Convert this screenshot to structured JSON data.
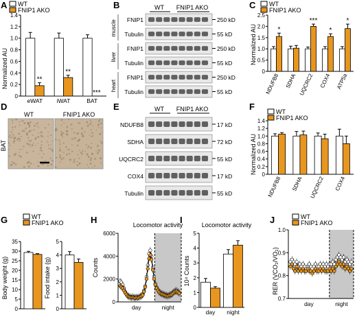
{
  "panel_labels": {
    "A": "A",
    "B": "B",
    "C": "C",
    "D": "D",
    "E": "E",
    "F": "F",
    "G": "G",
    "H": "H",
    "I": "I",
    "J": "J"
  },
  "legend": {
    "wt": "WT",
    "ko": "FNIP1 AKO"
  },
  "colors": {
    "wt": "#ffffff",
    "ko": "#e8961f",
    "outline": "#000000",
    "night": "#c8c8c8"
  },
  "panel_a": {
    "ylabel": "Normalized AU"
  },
  "panel_b": {
    "wt_label": "WT",
    "ko_label": "FNIP1 AKO",
    "tissues": [
      "muscle",
      "liver",
      "heart"
    ],
    "rows": [
      {
        "protein": "FNIP1",
        "kd": "250 kD"
      },
      {
        "protein": "Tubulin",
        "kd": "55 kD"
      },
      {
        "protein": "FNIP1",
        "kd": "250 kD"
      },
      {
        "protein": "Tubulin",
        "kd": "55 kD"
      },
      {
        "protein": "FNIP1",
        "kd": "250 kD"
      },
      {
        "protein": "Tubulin",
        "kd": "55 kD"
      }
    ]
  },
  "panel_c": {
    "ylabel": "Normalized AU"
  },
  "panel_d": {
    "wt_label": "WT",
    "ko_label": "FNIP1 AKO",
    "side_label": "BAT"
  },
  "panel_e": {
    "wt_label": "WT",
    "ko_label": "FNIP1 AKO",
    "rows": [
      {
        "protein": "NDUFB8",
        "kd": "17 kD"
      },
      {
        "protein": "SDHA",
        "kd": "72 kD"
      },
      {
        "protein": "UQCRC2",
        "kd": "55 kD"
      },
      {
        "protein": "COX4",
        "kd": "17 kD"
      },
      {
        "protein": "Tubulin",
        "kd": "55 kD"
      }
    ]
  },
  "panel_f": {
    "ylabel": "Normalized AU"
  },
  "panel_g": {
    "ylabel1": "Body weight (g)",
    "ylabel2": "Food intake (g)"
  },
  "panel_h": {
    "title": "Locomotor activity",
    "ylabel": "Counts",
    "day": "day",
    "night": "night"
  },
  "panel_i": {
    "title": "Locomotor activity",
    "ylabel": "10⁴ Counts"
  },
  "panel_j": {
    "ylabel": "RER (VCO₂/VO₂)",
    "day": "day",
    "night": "night"
  },
  "chart_data": [
    {
      "panel": "A",
      "type": "bar",
      "categories": [
        "eWAT",
        "iWAT",
        "BAT"
      ],
      "series": [
        {
          "name": "WT",
          "values": [
            1.0,
            1.0,
            1.0
          ],
          "err": [
            0.1,
            0.09,
            0.06
          ]
        },
        {
          "name": "FNIP1 AKO",
          "values": [
            0.18,
            0.32,
            0.0
          ],
          "err": [
            0.05,
            0.04,
            0.0
          ]
        }
      ],
      "ylim": [
        0,
        1.4
      ],
      "yticks": [
        "0",
        "0.2",
        "0.4",
        "0.6",
        "0.8",
        "1.0",
        "1.2",
        "1.4"
      ],
      "sig": [
        "**",
        "**",
        "***"
      ]
    },
    {
      "panel": "C",
      "type": "bar",
      "categories": [
        "NDUFB8",
        "SDHA",
        "UQCRC2",
        "COX4",
        "ATP5a"
      ],
      "series": [
        {
          "name": "WT",
          "values": [
            1.0,
            1.0,
            1.0,
            1.0,
            1.0
          ],
          "err": [
            0.1,
            0.12,
            0.08,
            0.1,
            0.1
          ]
        },
        {
          "name": "FNIP1 AKO",
          "values": [
            1.55,
            1.03,
            2.0,
            1.55,
            1.9
          ],
          "err": [
            0.15,
            0.12,
            0.1,
            0.12,
            0.2
          ]
        }
      ],
      "ylim": [
        0,
        2.5
      ],
      "yticks": [
        "0",
        "0.5",
        "1.0",
        "1.5",
        "2.0",
        "2.5"
      ],
      "sig": [
        "*",
        "",
        "***",
        "*",
        "*"
      ]
    },
    {
      "panel": "F",
      "type": "bar",
      "categories": [
        "NDUFB8",
        "SDHA",
        "UQCRC2",
        "COX4"
      ],
      "series": [
        {
          "name": "WT",
          "values": [
            1.0,
            1.0,
            1.0,
            1.0
          ],
          "err": [
            0.06,
            0.12,
            0.08,
            0.18
          ]
        },
        {
          "name": "FNIP1 AKO",
          "values": [
            1.05,
            1.03,
            0.93,
            0.8
          ],
          "err": [
            0.04,
            0.1,
            0.12,
            0.2
          ]
        }
      ],
      "ylim": [
        0,
        1.4
      ],
      "yticks": [
        "0",
        "0.2",
        "0.4",
        "0.6",
        "0.8",
        "1.0",
        "1.2",
        "1.4"
      ],
      "sig": [
        "",
        "",
        "",
        ""
      ]
    },
    {
      "panel": "G1",
      "type": "bar",
      "categories": [
        ""
      ],
      "series": [
        {
          "name": "WT",
          "values": [
            29.3
          ],
          "err": [
            0.6
          ]
        },
        {
          "name": "FNIP1 AKO",
          "values": [
            28.3
          ],
          "err": [
            0.4
          ]
        }
      ],
      "ylim": [
        0,
        35
      ],
      "yticks": [
        "0",
        "5",
        "10",
        "15",
        "20",
        "25",
        "30",
        "35"
      ]
    },
    {
      "panel": "G2",
      "type": "bar",
      "categories": [
        ""
      ],
      "series": [
        {
          "name": "WT",
          "values": [
            4.0
          ],
          "err": [
            0.25
          ]
        },
        {
          "name": "FNIP1 AKO",
          "values": [
            3.45
          ],
          "err": [
            0.25
          ]
        }
      ],
      "ylim": [
        0,
        5
      ],
      "yticks": [
        "0",
        "1",
        "2",
        "3",
        "4",
        "5"
      ]
    },
    {
      "panel": "H",
      "type": "line",
      "ylim": [
        0,
        6000
      ],
      "yticks": [
        "0",
        "2000",
        "4000",
        "6000"
      ],
      "series": [
        {
          "name": "WT",
          "values": [
            1800,
            1700,
            1500,
            1200,
            900,
            700,
            550,
            500,
            450,
            400,
            450,
            400,
            380,
            420,
            400,
            450,
            500,
            550,
            700,
            1000,
            1400,
            2200,
            3200,
            4200,
            4500,
            4000,
            3000,
            2200,
            1600,
            1300,
            1100,
            900,
            800,
            750,
            700,
            650,
            600,
            580,
            550,
            600,
            650,
            700,
            800,
            900,
            1000,
            1000,
            900,
            800
          ]
        },
        {
          "name": "FNIP1 AKO",
          "values": [
            1400,
            1300,
            1200,
            1000,
            800,
            650,
            500,
            450,
            400,
            380,
            400,
            370,
            350,
            380,
            360,
            400,
            450,
            500,
            600,
            900,
            1300,
            2000,
            2900,
            3800,
            4100,
            3700,
            2800,
            2000,
            1500,
            1200,
            1000,
            850,
            750,
            700,
            650,
            600,
            560,
            540,
            520,
            560,
            600,
            650,
            750,
            850,
            900,
            900,
            850,
            750
          ]
        }
      ],
      "night_start_fraction": 0.58
    },
    {
      "panel": "I",
      "type": "bar",
      "categories": [
        "day",
        "night"
      ],
      "series": [
        {
          "name": "WT",
          "values": [
            1.7,
            3.6
          ],
          "err": [
            0.25,
            0.3
          ]
        },
        {
          "name": "FNIP1 AKO",
          "values": [
            1.3,
            4.2
          ],
          "err": [
            0.1,
            0.3
          ]
        }
      ],
      "ylim": [
        0,
        5
      ],
      "yticks": [
        "0",
        "1",
        "2",
        "3",
        "4",
        "5"
      ]
    },
    {
      "panel": "J",
      "type": "line",
      "ylim": [
        0.7,
        1.0
      ],
      "yticks": [
        "0.7",
        "0.8",
        "0.9",
        "1.0"
      ],
      "series": [
        {
          "name": "WT",
          "values": [
            0.86,
            0.87,
            0.86,
            0.85,
            0.86,
            0.84,
            0.85,
            0.84,
            0.85,
            0.84,
            0.83,
            0.84,
            0.85,
            0.84,
            0.83,
            0.84,
            0.85,
            0.84,
            0.84,
            0.85,
            0.84,
            0.85,
            0.84,
            0.85,
            0.84,
            0.85,
            0.85,
            0.86,
            0.85,
            0.87,
            0.88,
            0.89,
            0.88,
            0.87,
            0.88,
            0.86,
            0.87,
            0.86,
            0.85,
            0.86
          ]
        },
        {
          "name": "FNIP1 AKO",
          "values": [
            0.84,
            0.85,
            0.83,
            0.82,
            0.84,
            0.82,
            0.83,
            0.82,
            0.83,
            0.82,
            0.82,
            0.83,
            0.82,
            0.82,
            0.81,
            0.82,
            0.83,
            0.82,
            0.82,
            0.83,
            0.82,
            0.83,
            0.82,
            0.82,
            0.82,
            0.83,
            0.82,
            0.83,
            0.82,
            0.84,
            0.85,
            0.86,
            0.85,
            0.84,
            0.85,
            0.83,
            0.84,
            0.83,
            0.82,
            0.83
          ]
        }
      ],
      "night_start_fraction": 0.63
    }
  ]
}
